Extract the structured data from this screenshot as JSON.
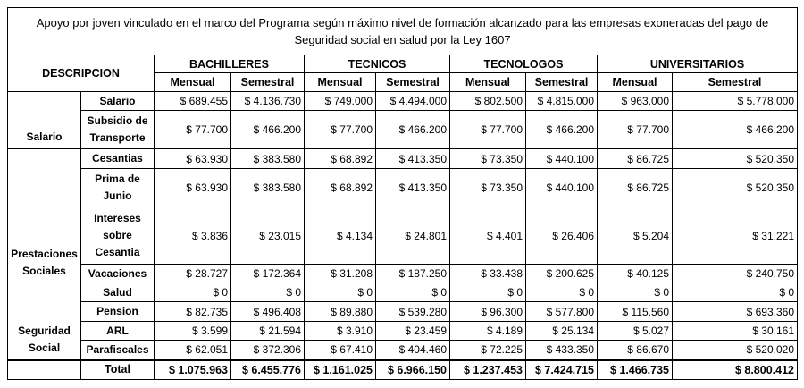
{
  "title": "Apoyo por joven vinculado en el marco del Programa según máximo nivel de formación alcanzado para las empresas exoneradas del pago de Seguridad social en salud por la Ley 1607",
  "header": {
    "description": "DESCRIPCION",
    "groups": [
      "BACHILLERES",
      "TECNICOS",
      "TECNOLOGOS",
      "UNIVERSITARIOS"
    ],
    "subheaders": [
      "Mensual",
      "Semestral",
      "Mensual",
      "Semestral",
      "Mensual",
      "Semestral",
      "Mensual",
      "Semestral"
    ]
  },
  "sections": [
    {
      "label": "Salario",
      "rows": [
        {
          "label": "Salario",
          "values": [
            "$ 689.455",
            "$ 4.136.730",
            "$ 749.000",
            "$ 4.494.000",
            "$ 802.500",
            "$ 4.815.000",
            "$ 963.000",
            "$ 5.778.000"
          ]
        },
        {
          "label": "Subsidio de Transporte",
          "values": [
            "$ 77.700",
            "$ 466.200",
            "$ 77.700",
            "$ 466.200",
            "$ 77.700",
            "$ 466.200",
            "$ 77.700",
            "$ 466.200"
          ]
        }
      ]
    },
    {
      "label": "Prestaciones Sociales",
      "rows": [
        {
          "label": "Cesantias",
          "values": [
            "$ 63.930",
            "$ 383.580",
            "$ 68.892",
            "$ 413.350",
            "$ 73.350",
            "$ 440.100",
            "$ 86.725",
            "$ 520.350"
          ]
        },
        {
          "label": "Prima de Junio",
          "values": [
            "$ 63.930",
            "$ 383.580",
            "$ 68.892",
            "$ 413.350",
            "$ 73.350",
            "$ 440.100",
            "$ 86.725",
            "$ 520.350"
          ]
        },
        {
          "label": "Intereses sobre Cesantia",
          "values": [
            "$ 3.836",
            "$ 23.015",
            "$ 4.134",
            "$ 24.801",
            "$ 4.401",
            "$ 26.406",
            "$ 5.204",
            "$ 31.221"
          ]
        },
        {
          "label": "Vacaciones",
          "values": [
            "$ 28.727",
            "$ 172.364",
            "$ 31.208",
            "$ 187.250",
            "$ 33.438",
            "$ 200.625",
            "$ 40.125",
            "$ 240.750"
          ]
        }
      ]
    },
    {
      "label": "Seguridad Social",
      "rows": [
        {
          "label": "Salud",
          "values": [
            "$ 0",
            "$ 0",
            "$ 0",
            "$ 0",
            "$ 0",
            "$ 0",
            "$ 0",
            "$ 0"
          ]
        },
        {
          "label": "Pension",
          "values": [
            "$ 82.735",
            "$ 496.408",
            "$ 89.880",
            "$ 539.280",
            "$ 96.300",
            "$ 577.800",
            "$ 115.560",
            "$ 693.360"
          ]
        },
        {
          "label": "ARL",
          "values": [
            "$ 3.599",
            "$ 21.594",
            "$ 3.910",
            "$ 23.459",
            "$ 4.189",
            "$ 25.134",
            "$ 5.027",
            "$ 30.161"
          ]
        },
        {
          "label": "Parafiscales",
          "values": [
            "$ 62.051",
            "$ 372.306",
            "$ 67.410",
            "$ 404.460",
            "$ 72.225",
            "$ 433.350",
            "$ 86.670",
            "$ 520.020"
          ]
        }
      ]
    }
  ],
  "total": {
    "label": "Total",
    "values": [
      "$ 1.075.963",
      "$ 6.455.776",
      "$ 1.161.025",
      "$ 6.966.150",
      "$ 1.237.453",
      "$ 7.424.715",
      "$ 1.466.735",
      "$ 8.800.412"
    ]
  }
}
